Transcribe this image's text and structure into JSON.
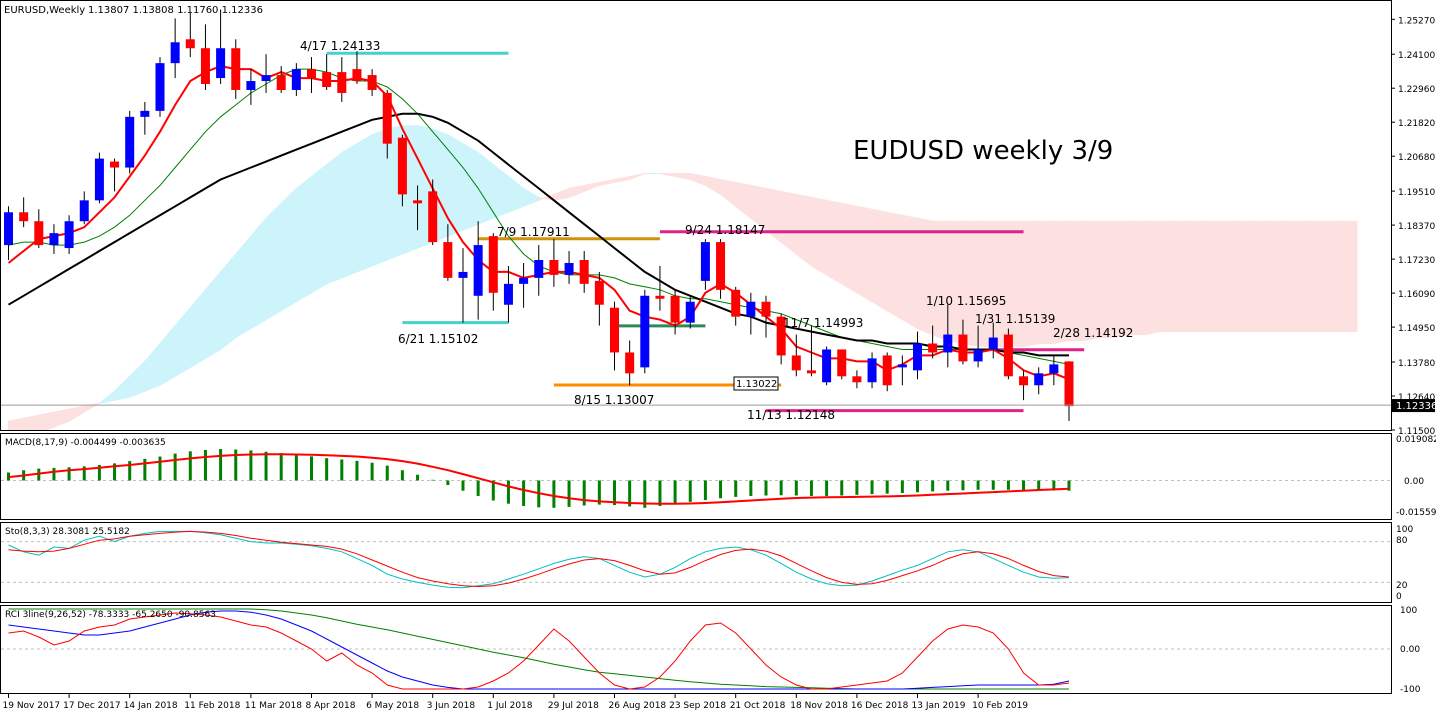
{
  "header": {
    "symbol": "EURUSD,Weekly",
    "ohlc": "1.13807 1.13808 1.11760 1.12336"
  },
  "annotation_title": "EUDUSD weekly 3/9",
  "price_axis": {
    "ticks": [
      "1.25270",
      "1.24100",
      "1.22960",
      "1.21820",
      "1.20680",
      "1.19510",
      "1.18370",
      "1.17230",
      "1.16090",
      "1.14950",
      "1.13780",
      "1.12640",
      "1.11500"
    ],
    "current_price": "1.12336"
  },
  "date_axis": [
    "19 Nov 2017",
    "17 Dec 2017",
    "14 Jan 2018",
    "11 Feb 2018",
    "11 Mar 2018",
    "8 Apr 2018",
    "6 May 2018",
    "3 Jun 2018",
    "1 Jul 2018",
    "29 Jul 2018",
    "26 Aug 2018",
    "23 Sep 2018",
    "21 Oct 2018",
    "18 Nov 2018",
    "16 Dec 2018",
    "13 Jan 2019",
    "10 Feb 2019"
  ],
  "level_labels": [
    {
      "text": "4/17 1.24133",
      "color": "#48d1cc"
    },
    {
      "text": "7/9 1.17911",
      "color": "#d4900c"
    },
    {
      "text": "9/24 1.18147",
      "color": "#e0218a"
    },
    {
      "text": "6/21 1.15102",
      "color": "#48d1cc"
    },
    {
      "text": "8/15 1.13007",
      "color": "#ff8c00"
    },
    {
      "text": "11/7 1.14993",
      "color": "#2e8b57"
    },
    {
      "text": "1/10 1.15695",
      "color": "#000000"
    },
    {
      "text": "1/31 1.15139",
      "color": "#000000"
    },
    {
      "text": "2/28 1.14192",
      "color": "#e0218a"
    },
    {
      "text": "11/13 1.12148",
      "color": "#e0218a"
    }
  ],
  "box_label": "1.13022",
  "macd": {
    "title": "MACD(8,17,9) -0.004499 -0.003635",
    "ticks": [
      "0.019082",
      "0.00",
      "-0.015599"
    ]
  },
  "stochastic": {
    "title": "Sto(8,3,3) 28.3081 25.5182",
    "ticks": [
      "100",
      "80",
      "20",
      "0"
    ]
  },
  "rci": {
    "title": "RCI 3line(9,26,52) -78.3333 -65.2650 -90.8563",
    "ticks": [
      "100",
      "0.00",
      "-100"
    ]
  },
  "colors": {
    "bull_candle": "#0000ff",
    "bear_candle": "#ff0000",
    "ma_fast": "#ff0000",
    "ma_mid": "#008000",
    "ma_slow": "#000000",
    "cloud_bull": "#cdf4fb",
    "cloud_bear": "#fde1e0",
    "macd_hist": "#008000",
    "macd_signal": "#ff0000",
    "sto_main": "#00bfbf",
    "sto_signal": "#ff0000",
    "rci_short": "#ff0000",
    "rci_mid": "#0000ff",
    "rci_long": "#008000"
  },
  "chart_data": {
    "type": "candlestick",
    "timeframe": "Weekly",
    "symbol": "EURUSD",
    "ylim": [
      1.115,
      1.2585
    ],
    "candles_ohlc": [
      [
        1.177,
        1.19,
        1.172,
        1.188
      ],
      [
        1.188,
        1.193,
        1.183,
        1.185
      ],
      [
        1.185,
        1.189,
        1.176,
        1.177
      ],
      [
        1.177,
        1.184,
        1.174,
        1.181
      ],
      [
        1.176,
        1.187,
        1.174,
        1.185
      ],
      [
        1.185,
        1.195,
        1.184,
        1.192
      ],
      [
        1.192,
        1.208,
        1.191,
        1.206
      ],
      [
        1.205,
        1.206,
        1.195,
        1.203
      ],
      [
        1.203,
        1.222,
        1.201,
        1.22
      ],
      [
        1.22,
        1.225,
        1.214,
        1.222
      ],
      [
        1.222,
        1.24,
        1.22,
        1.238
      ],
      [
        1.238,
        1.253,
        1.233,
        1.245
      ],
      [
        1.246,
        1.255,
        1.24,
        1.243
      ],
      [
        1.243,
        1.251,
        1.229,
        1.231
      ],
      [
        1.233,
        1.256,
        1.231,
        1.243
      ],
      [
        1.243,
        1.246,
        1.226,
        1.229
      ],
      [
        1.229,
        1.236,
        1.224,
        1.232
      ],
      [
        1.232,
        1.241,
        1.228,
        1.234
      ],
      [
        1.234,
        1.237,
        1.228,
        1.229
      ],
      [
        1.229,
        1.238,
        1.227,
        1.236
      ],
      [
        1.236,
        1.24,
        1.228,
        1.233
      ],
      [
        1.235,
        1.241,
        1.229,
        1.23
      ],
      [
        1.235,
        1.24,
        1.225,
        1.228
      ],
      [
        1.236,
        1.242,
        1.231,
        1.232
      ],
      [
        1.234,
        1.236,
        1.227,
        1.229
      ],
      [
        1.228,
        1.229,
        1.206,
        1.211
      ],
      [
        1.213,
        1.214,
        1.19,
        1.194
      ],
      [
        1.192,
        1.197,
        1.182,
        1.191
      ],
      [
        1.195,
        1.199,
        1.177,
        1.178
      ],
      [
        1.178,
        1.184,
        1.165,
        1.166
      ],
      [
        1.166,
        1.176,
        1.151,
        1.168
      ],
      [
        1.16,
        1.185,
        1.152,
        1.177
      ],
      [
        1.18,
        1.181,
        1.155,
        1.161
      ],
      [
        1.157,
        1.17,
        1.151,
        1.164
      ],
      [
        1.164,
        1.171,
        1.156,
        1.166
      ],
      [
        1.166,
        1.177,
        1.16,
        1.172
      ],
      [
        1.172,
        1.179,
        1.163,
        1.167
      ],
      [
        1.167,
        1.175,
        1.164,
        1.171
      ],
      [
        1.172,
        1.175,
        1.161,
        1.164
      ],
      [
        1.165,
        1.168,
        1.15,
        1.157
      ],
      [
        1.156,
        1.158,
        1.135,
        1.141
      ],
      [
        1.141,
        1.145,
        1.13,
        1.134
      ],
      [
        1.136,
        1.162,
        1.134,
        1.16
      ],
      [
        1.16,
        1.17,
        1.155,
        1.159
      ],
      [
        1.16,
        1.162,
        1.147,
        1.151
      ],
      [
        1.151,
        1.16,
        1.149,
        1.158
      ],
      [
        1.165,
        1.179,
        1.162,
        1.178
      ],
      [
        1.178,
        1.179,
        1.159,
        1.162
      ],
      [
        1.162,
        1.163,
        1.15,
        1.153
      ],
      [
        1.153,
        1.161,
        1.147,
        1.158
      ],
      [
        1.158,
        1.16,
        1.146,
        1.153
      ],
      [
        1.153,
        1.154,
        1.137,
        1.14
      ],
      [
        1.14,
        1.147,
        1.133,
        1.135
      ],
      [
        1.135,
        1.15,
        1.133,
        1.134
      ],
      [
        1.131,
        1.143,
        1.13,
        1.142
      ],
      [
        1.142,
        1.142,
        1.132,
        1.133
      ],
      [
        1.133,
        1.135,
        1.129,
        1.131
      ],
      [
        1.131,
        1.141,
        1.129,
        1.139
      ],
      [
        1.14,
        1.141,
        1.128,
        1.13
      ],
      [
        1.136,
        1.14,
        1.13,
        1.137
      ],
      [
        1.135,
        1.148,
        1.132,
        1.144
      ],
      [
        1.144,
        1.15,
        1.139,
        1.141
      ],
      [
        1.141,
        1.157,
        1.136,
        1.147
      ],
      [
        1.147,
        1.152,
        1.137,
        1.138
      ],
      [
        1.138,
        1.15,
        1.136,
        1.142
      ],
      [
        1.142,
        1.151,
        1.139,
        1.146
      ],
      [
        1.147,
        1.149,
        1.132,
        1.133
      ],
      [
        1.133,
        1.135,
        1.125,
        1.13
      ],
      [
        1.13,
        1.136,
        1.127,
        1.134
      ],
      [
        1.134,
        1.14,
        1.13,
        1.137
      ],
      [
        1.138,
        1.138,
        1.118,
        1.123
      ]
    ],
    "ma_fast": [
      1.171,
      1.175,
      1.179,
      1.18,
      1.181,
      1.183,
      1.188,
      1.193,
      1.2,
      1.207,
      1.215,
      1.224,
      1.232,
      1.235,
      1.237,
      1.236,
      1.236,
      1.233,
      1.235,
      1.233,
      1.233,
      1.232,
      1.232,
      1.233,
      1.232,
      1.227,
      1.216,
      1.206,
      1.196,
      1.186,
      1.178,
      1.172,
      1.168,
      1.168,
      1.166,
      1.167,
      1.168,
      1.168,
      1.167,
      1.166,
      1.162,
      1.155,
      1.153,
      1.152,
      1.15,
      1.153,
      1.161,
      1.164,
      1.161,
      1.157,
      1.153,
      1.149,
      1.143,
      1.141,
      1.139,
      1.139,
      1.138,
      1.138,
      1.135,
      1.137,
      1.14,
      1.14,
      1.142,
      1.141,
      1.141,
      1.142,
      1.139,
      1.135,
      1.133,
      1.134,
      1.132
    ],
    "ma_mid": [
      1.177,
      1.178,
      1.178,
      1.177,
      1.177,
      1.178,
      1.18,
      1.183,
      1.187,
      1.192,
      1.197,
      1.203,
      1.209,
      1.215,
      1.22,
      1.224,
      1.228,
      1.231,
      1.234,
      1.236,
      1.236,
      1.235,
      1.233,
      1.232,
      1.232,
      1.23,
      1.226,
      1.221,
      1.215,
      1.209,
      1.203,
      1.196,
      1.188,
      1.18,
      1.174,
      1.17,
      1.168,
      1.167,
      1.167,
      1.167,
      1.166,
      1.164,
      1.163,
      1.162,
      1.16,
      1.159,
      1.159,
      1.158,
      1.157,
      1.156,
      1.155,
      1.154,
      1.152,
      1.15,
      1.148,
      1.146,
      1.145,
      1.144,
      1.143,
      1.142,
      1.142,
      1.142,
      1.142,
      1.142,
      1.142,
      1.142,
      1.141,
      1.14,
      1.139,
      1.138,
      1.137
    ],
    "ma_slow": [
      1.157,
      1.16,
      1.163,
      1.166,
      1.169,
      1.172,
      1.175,
      1.178,
      1.181,
      1.184,
      1.187,
      1.19,
      1.193,
      1.196,
      1.199,
      1.201,
      1.203,
      1.205,
      1.207,
      1.209,
      1.211,
      1.213,
      1.215,
      1.217,
      1.219,
      1.22,
      1.221,
      1.221,
      1.22,
      1.218,
      1.215,
      1.212,
      1.208,
      1.204,
      1.2,
      1.196,
      1.192,
      1.188,
      1.184,
      1.18,
      1.176,
      1.172,
      1.168,
      1.165,
      1.162,
      1.16,
      1.158,
      1.156,
      1.154,
      1.153,
      1.151,
      1.15,
      1.149,
      1.148,
      1.147,
      1.146,
      1.145,
      1.145,
      1.144,
      1.144,
      1.144,
      1.143,
      1.143,
      1.142,
      1.142,
      1.142,
      1.141,
      1.141,
      1.14,
      1.14,
      1.14
    ],
    "cloud_span_a": [
      1.11,
      1.112,
      1.114,
      1.116,
      1.118,
      1.121,
      1.124,
      1.128,
      1.133,
      1.138,
      1.144,
      1.15,
      1.156,
      1.162,
      1.168,
      1.174,
      1.18,
      1.186,
      1.191,
      1.196,
      1.2,
      1.204,
      1.208,
      1.211,
      1.214,
      1.216,
      1.217,
      1.217,
      1.216,
      1.214,
      1.211,
      1.208,
      1.204,
      1.2,
      1.196,
      1.193,
      1.192,
      1.193,
      1.195,
      1.197,
      1.198,
      1.199,
      1.201,
      1.201,
      1.2,
      1.199,
      1.197,
      1.194,
      1.19,
      1.186,
      1.182,
      1.178,
      1.174,
      1.17,
      1.167,
      1.164,
      1.161,
      1.158,
      1.155,
      1.152,
      1.149,
      1.147,
      1.145,
      1.144,
      1.143,
      1.143,
      1.143,
      1.143,
      1.144,
      1.144,
      1.145,
      1.145,
      1.146,
      1.146,
      1.147,
      1.147,
      1.148,
      1.148,
      1.148,
      1.148,
      1.148,
      1.148,
      1.148,
      1.148,
      1.148,
      1.148,
      1.148,
      1.148,
      1.148,
      1.148
    ],
    "cloud_span_b": [
      1.118,
      1.119,
      1.12,
      1.121,
      1.122,
      1.123,
      1.124,
      1.125,
      1.126,
      1.128,
      1.13,
      1.133,
      1.136,
      1.139,
      1.142,
      1.146,
      1.149,
      1.152,
      1.155,
      1.158,
      1.161,
      1.164,
      1.166,
      1.168,
      1.17,
      1.172,
      1.174,
      1.176,
      1.178,
      1.18,
      1.182,
      1.184,
      1.186,
      1.188,
      1.19,
      1.192,
      1.194,
      1.196,
      1.197,
      1.198,
      1.199,
      1.2,
      1.201,
      1.201,
      1.201,
      1.201,
      1.2,
      1.199,
      1.198,
      1.197,
      1.196,
      1.195,
      1.194,
      1.193,
      1.192,
      1.191,
      1.19,
      1.189,
      1.188,
      1.187,
      1.186,
      1.185,
      1.185,
      1.185,
      1.185,
      1.185,
      1.185,
      1.185,
      1.185,
      1.185,
      1.185,
      1.185,
      1.185,
      1.185,
      1.185,
      1.185,
      1.185,
      1.185,
      1.185,
      1.185,
      1.185,
      1.185,
      1.185,
      1.185,
      1.185,
      1.185,
      1.185,
      1.185,
      1.185,
      1.185
    ],
    "level_lines": [
      {
        "y": 1.24133,
        "x_from": 21,
        "x_to": 33,
        "color": "#48d1cc"
      },
      {
        "y": 1.17911,
        "x_from": 31,
        "x_to": 43,
        "color": "#d4900c"
      },
      {
        "y": 1.18147,
        "x_from": 43,
        "x_to": 67,
        "color": "#e0218a"
      },
      {
        "y": 1.15102,
        "x_from": 26,
        "x_to": 33,
        "color": "#48d1cc"
      },
      {
        "y": 1.13007,
        "x_from": 36,
        "x_to": 51,
        "color": "#ff8c00"
      },
      {
        "y": 1.14993,
        "x_from": 40,
        "x_to": 46,
        "color": "#2e8b57"
      },
      {
        "y": 1.14192,
        "x_from": 65,
        "x_to": 71,
        "color": "#e0218a"
      },
      {
        "y": 1.12148,
        "x_from": 50,
        "x_to": 67,
        "color": "#e0218a"
      }
    ],
    "macd_hist": [
      0.0035,
      0.0045,
      0.0052,
      0.0055,
      0.0058,
      0.0062,
      0.0068,
      0.0075,
      0.0085,
      0.0095,
      0.0105,
      0.0118,
      0.0128,
      0.0134,
      0.0138,
      0.0136,
      0.0132,
      0.0126,
      0.012,
      0.0112,
      0.0106,
      0.0098,
      0.0092,
      0.0086,
      0.0078,
      0.0065,
      0.0045,
      0.0025,
      0.0003,
      -0.002,
      -0.0045,
      -0.0068,
      -0.0088,
      -0.0102,
      -0.0112,
      -0.0118,
      -0.012,
      -0.0116,
      -0.011,
      -0.0106,
      -0.0108,
      -0.0114,
      -0.012,
      -0.0112,
      -0.0103,
      -0.0094,
      -0.0086,
      -0.0078,
      -0.0072,
      -0.0068,
      -0.0066,
      -0.0065,
      -0.0066,
      -0.0068,
      -0.0068,
      -0.0066,
      -0.0063,
      -0.006,
      -0.0058,
      -0.0055,
      -0.0052,
      -0.0048,
      -0.0045,
      -0.0043,
      -0.0041,
      -0.0041,
      -0.0041,
      -0.0042,
      -0.0043,
      -0.0044,
      -0.0045
    ],
    "macd_signal": [
      0.0015,
      0.0022,
      0.003,
      0.0038,
      0.0045,
      0.005,
      0.0056,
      0.0062,
      0.0068,
      0.0075,
      0.0082,
      0.009,
      0.0097,
      0.0103,
      0.0108,
      0.0112,
      0.0114,
      0.0115,
      0.0115,
      0.0114,
      0.0113,
      0.0111,
      0.0108,
      0.0105,
      0.01,
      0.0094,
      0.0085,
      0.0074,
      0.006,
      0.0045,
      0.0028,
      0.001,
      -0.0008,
      -0.0026,
      -0.0042,
      -0.0056,
      -0.0068,
      -0.0078,
      -0.0086,
      -0.0092,
      -0.0096,
      -0.0099,
      -0.0101,
      -0.0102,
      -0.0102,
      -0.0101,
      -0.0099,
      -0.0096,
      -0.0092,
      -0.0088,
      -0.0084,
      -0.008,
      -0.0077,
      -0.0075,
      -0.0074,
      -0.0073,
      -0.0072,
      -0.0071,
      -0.007,
      -0.0068,
      -0.0066,
      -0.0063,
      -0.006,
      -0.0057,
      -0.0054,
      -0.0051,
      -0.0048,
      -0.0045,
      -0.0042,
      -0.0039,
      -0.0036
    ],
    "sto_main": [
      75,
      65,
      60,
      72,
      70,
      82,
      88,
      80,
      88,
      92,
      95,
      95,
      95,
      93,
      90,
      85,
      80,
      78,
      78,
      76,
      74,
      70,
      65,
      55,
      45,
      32,
      25,
      20,
      16,
      13,
      12,
      15,
      18,
      25,
      32,
      40,
      48,
      54,
      58,
      55,
      45,
      35,
      28,
      32,
      42,
      55,
      65,
      70,
      72,
      68,
      60,
      48,
      35,
      25,
      18,
      15,
      16,
      22,
      30,
      38,
      45,
      55,
      65,
      68,
      65,
      55,
      45,
      35,
      28,
      26,
      27
    ],
    "sto_signal": [
      68,
      66,
      65,
      66,
      70,
      76,
      82,
      84,
      88,
      90,
      92,
      94,
      95,
      94,
      92,
      89,
      85,
      82,
      79,
      77,
      75,
      73,
      69,
      62,
      53,
      44,
      35,
      27,
      22,
      18,
      15,
      14,
      15,
      19,
      25,
      32,
      40,
      47,
      53,
      55,
      52,
      45,
      37,
      32,
      34,
      42,
      52,
      61,
      67,
      69,
      66,
      59,
      48,
      37,
      27,
      20,
      17,
      18,
      23,
      30,
      37,
      45,
      55,
      62,
      65,
      62,
      55,
      45,
      36,
      30,
      28
    ],
    "rci_short": [
      40,
      45,
      30,
      10,
      20,
      45,
      55,
      60,
      75,
      80,
      85,
      90,
      88,
      85,
      80,
      70,
      60,
      55,
      40,
      20,
      0,
      -30,
      -10,
      -40,
      -60,
      -90,
      -100,
      -100,
      -100,
      -100,
      -100,
      -95,
      -80,
      -60,
      -30,
      10,
      50,
      20,
      -20,
      -60,
      -90,
      -100,
      -95,
      -70,
      -30,
      20,
      60,
      65,
      40,
      0,
      -40,
      -70,
      -90,
      -100,
      -100,
      -95,
      -90,
      -85,
      -80,
      -60,
      -20,
      20,
      50,
      60,
      55,
      40,
      0,
      -60,
      -90,
      -90,
      -85
    ],
    "rci_mid": [
      60,
      55,
      50,
      45,
      40,
      35,
      35,
      40,
      45,
      55,
      65,
      75,
      85,
      92,
      95,
      95,
      92,
      85,
      75,
      60,
      45,
      25,
      5,
      -15,
      -35,
      -55,
      -70,
      -80,
      -90,
      -96,
      -100,
      -100,
      -100,
      -100,
      -100,
      -100,
      -100,
      -100,
      -100,
      -100,
      -100,
      -100,
      -100,
      -100,
      -100,
      -100,
      -100,
      -100,
      -100,
      -100,
      -100,
      -100,
      -100,
      -100,
      -100,
      -100,
      -100,
      -100,
      -100,
      -100,
      -98,
      -96,
      -94,
      -92,
      -90,
      -90,
      -90,
      -90,
      -90,
      -88,
      -80
    ],
    "rci_long": [
      100,
      100,
      100,
      100,
      100,
      100,
      100,
      100,
      100,
      100,
      100,
      100,
      100,
      100,
      100,
      100,
      100,
      98,
      95,
      90,
      85,
      78,
      70,
      62,
      55,
      48,
      40,
      32,
      24,
      16,
      8,
      0,
      -8,
      -15,
      -22,
      -30,
      -38,
      -45,
      -52,
      -58,
      -62,
      -66,
      -70,
      -74,
      -78,
      -82,
      -85,
      -88,
      -90,
      -92,
      -94,
      -95,
      -96,
      -97,
      -98,
      -99,
      -100,
      -100,
      -100,
      -100,
      -100,
      -100,
      -100,
      -100,
      -100,
      -100,
      -100,
      -100,
      -100,
      -100,
      -100
    ]
  }
}
